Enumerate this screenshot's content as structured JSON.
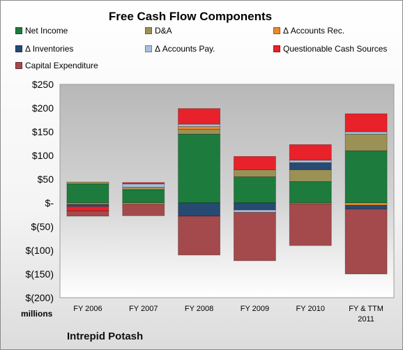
{
  "chart_data": {
    "type": "bar",
    "stacked": true,
    "title": "Free Cash Flow Components",
    "units_label": "millions",
    "company": "Intrepid Potash",
    "categories": [
      "FY 2006",
      "FY 2007",
      "FY 2008",
      "FY 2009",
      "FY 2010",
      "FY & TTM 2011"
    ],
    "ylim": [
      -200,
      250
    ],
    "yticks": [
      -200,
      -150,
      -100,
      -50,
      0,
      50,
      100,
      150,
      200,
      250
    ],
    "ytick_labels": [
      "$(200)",
      "$(150)",
      "$(100)",
      "$(50)",
      "$-",
      "$50",
      "$100",
      "$150",
      "$200",
      "$250"
    ],
    "grid": false,
    "legend_position": "top",
    "series": [
      {
        "name": "Net Income",
        "color": "#1e7b3e",
        "values": [
          40,
          28,
          145,
          55,
          45,
          110
        ]
      },
      {
        "name": "D&A",
        "color": "#9c9155",
        "values": [
          4,
          5,
          10,
          15,
          25,
          35
        ]
      },
      {
        "name": "Δ Accounts Rec.",
        "color": "#e8892c",
        "values": [
          -3,
          -3,
          6,
          0,
          -2,
          -5
        ]
      },
      {
        "name": "Δ Inventories",
        "color": "#274a72",
        "values": [
          -4,
          0,
          -28,
          -15,
          15,
          -8
        ]
      },
      {
        "name": "Δ Accounts Pay.",
        "color": "#a8bfdc",
        "values": [
          -1,
          7,
          5,
          -5,
          5,
          5
        ]
      },
      {
        "name": "Questionable Cash Sources",
        "color": "#e8212a",
        "values": [
          -9,
          3,
          33,
          28,
          33,
          38
        ]
      },
      {
        "name": "Capital Expenditure",
        "color": "#a44a4c",
        "values": [
          -11,
          -24,
          -82,
          -102,
          -88,
          -137
        ]
      }
    ]
  }
}
